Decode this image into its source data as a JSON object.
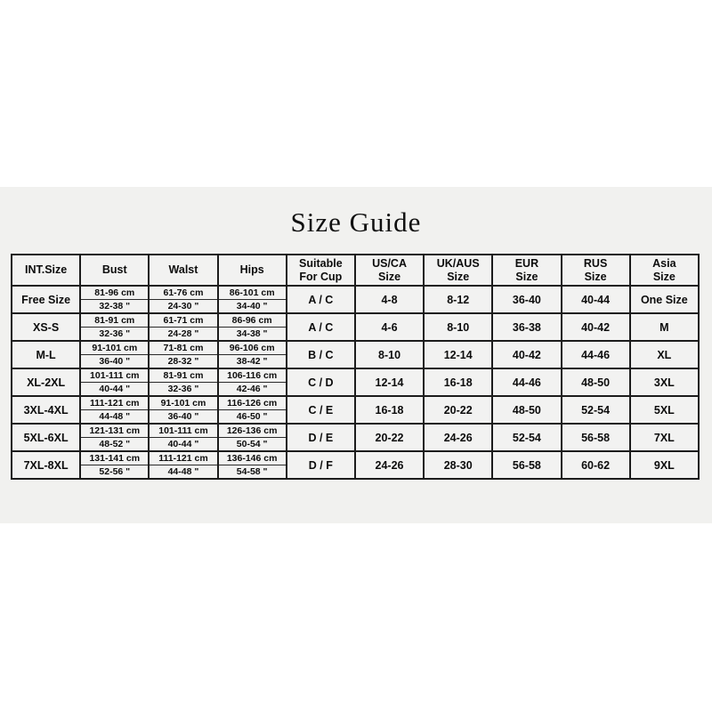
{
  "title": "Size Guide",
  "colors": {
    "panel_bg": "#f1f1ef",
    "cell_bg": "#f2f2f1",
    "border": "#1c1c1c",
    "text": "#0c0c0c",
    "page_bg": "#ffffff"
  },
  "table": {
    "headers": [
      "INT.Size",
      "Bust",
      "Walst",
      "Hips",
      "Suitable\nFor Cup",
      "US/CA\nSize",
      "UK/AUS\nSize",
      "EUR\nSize",
      "RUS\nSize",
      "Asia\nSize"
    ],
    "rows": [
      {
        "size": "Free Size",
        "bust_cm": "81-96 cm",
        "bust_in": "32-38 \"",
        "waist_cm": "61-76 cm",
        "waist_in": "24-30 \"",
        "hips_cm": "86-101 cm",
        "hips_in": "34-40 \"",
        "cup": "A / C",
        "us_ca": "4-8",
        "uk_aus": "8-12",
        "eur": "36-40",
        "rus": "40-44",
        "asia": "One Size"
      },
      {
        "size": "XS-S",
        "bust_cm": "81-91 cm",
        "bust_in": "32-36 \"",
        "waist_cm": "61-71 cm",
        "waist_in": "24-28 \"",
        "hips_cm": "86-96 cm",
        "hips_in": "34-38 \"",
        "cup": "A / C",
        "us_ca": "4-6",
        "uk_aus": "8-10",
        "eur": "36-38",
        "rus": "40-42",
        "asia": "M"
      },
      {
        "size": "M-L",
        "bust_cm": "91-101 cm",
        "bust_in": "36-40 \"",
        "waist_cm": "71-81 cm",
        "waist_in": "28-32 \"",
        "hips_cm": "96-106 cm",
        "hips_in": "38-42 \"",
        "cup": "B / C",
        "us_ca": "8-10",
        "uk_aus": "12-14",
        "eur": "40-42",
        "rus": "44-46",
        "asia": "XL"
      },
      {
        "size": "XL-2XL",
        "bust_cm": "101-111 cm",
        "bust_in": "40-44 \"",
        "waist_cm": "81-91 cm",
        "waist_in": "32-36 \"",
        "hips_cm": "106-116 cm",
        "hips_in": "42-46 \"",
        "cup": "C / D",
        "us_ca": "12-14",
        "uk_aus": "16-18",
        "eur": "44-46",
        "rus": "48-50",
        "asia": "3XL"
      },
      {
        "size": "3XL-4XL",
        "bust_cm": "111-121 cm",
        "bust_in": "44-48 \"",
        "waist_cm": "91-101 cm",
        "waist_in": "36-40 \"",
        "hips_cm": "116-126 cm",
        "hips_in": "46-50 \"",
        "cup": "C / E",
        "us_ca": "16-18",
        "uk_aus": "20-22",
        "eur": "48-50",
        "rus": "52-54",
        "asia": "5XL"
      },
      {
        "size": "5XL-6XL",
        "bust_cm": "121-131 cm",
        "bust_in": "48-52 \"",
        "waist_cm": "101-111 cm",
        "waist_in": "40-44 \"",
        "hips_cm": "126-136 cm",
        "hips_in": "50-54 \"",
        "cup": "D / E",
        "us_ca": "20-22",
        "uk_aus": "24-26",
        "eur": "52-54",
        "rus": "56-58",
        "asia": "7XL"
      },
      {
        "size": "7XL-8XL",
        "bust_cm": "131-141 cm",
        "bust_in": "52-56 \"",
        "waist_cm": "111-121 cm",
        "waist_in": "44-48 \"",
        "hips_cm": "136-146 cm",
        "hips_in": "54-58 \"",
        "cup": "D / F",
        "us_ca": "24-26",
        "uk_aus": "28-30",
        "eur": "56-58",
        "rus": "60-62",
        "asia": "9XL"
      }
    ]
  }
}
